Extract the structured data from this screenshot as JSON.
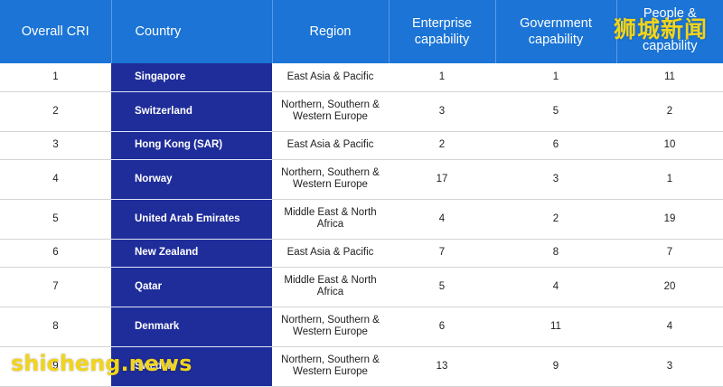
{
  "table": {
    "headers": {
      "rank": "Overall CRI",
      "country": "Country",
      "region": "Region",
      "enterprise": "Enterprise\ncapability",
      "government": "Government\ncapability",
      "people": "People &\n\ncapability"
    },
    "rows": [
      {
        "rank": "1",
        "country": "Singapore",
        "region": "East Asia & Pacific",
        "enterprise": "1",
        "government": "1",
        "people": "11"
      },
      {
        "rank": "2",
        "country": "Switzerland",
        "region": "Northern, Southern &\nWestern Europe",
        "enterprise": "3",
        "government": "5",
        "people": "2"
      },
      {
        "rank": "3",
        "country": "Hong Kong (SAR)",
        "region": "East Asia & Pacific",
        "enterprise": "2",
        "government": "6",
        "people": "10"
      },
      {
        "rank": "4",
        "country": "Norway",
        "region": "Northern, Southern &\nWestern Europe",
        "enterprise": "17",
        "government": "3",
        "people": "1"
      },
      {
        "rank": "5",
        "country": "United Arab Emirates",
        "region": "Middle East & North\nAfrica",
        "enterprise": "4",
        "government": "2",
        "people": "19"
      },
      {
        "rank": "6",
        "country": "New Zealand",
        "region": "East Asia & Pacific",
        "enterprise": "7",
        "government": "8",
        "people": "7"
      },
      {
        "rank": "7",
        "country": "Qatar",
        "region": "Middle East & North\nAfrica",
        "enterprise": "5",
        "government": "4",
        "people": "20"
      },
      {
        "rank": "8",
        "country": "Denmark",
        "region": "Northern, Southern &\nWestern Europe",
        "enterprise": "6",
        "government": "11",
        "people": "4"
      },
      {
        "rank": "9",
        "country": "Sweden",
        "region": "Northern, Southern &\nWestern Europe",
        "enterprise": "13",
        "government": "9",
        "people": "3"
      }
    ]
  },
  "watermarks": {
    "top": "狮城新闻",
    "bottom": "shicheng.news"
  },
  "colors": {
    "header_bg": "#1b74d6",
    "country_bg": "#1f2d9a",
    "watermark": "#f1d41c"
  }
}
